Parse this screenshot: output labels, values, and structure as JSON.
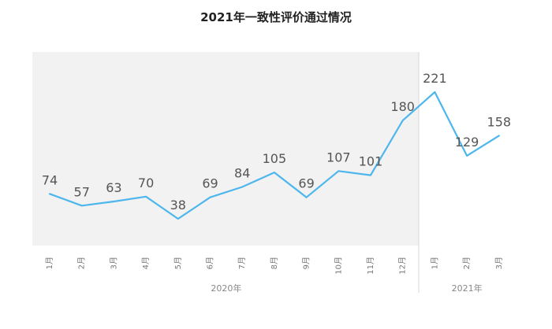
{
  "chart_data": {
    "type": "line",
    "title": "2021年一致性评价通过情况",
    "categories": [
      "1月",
      "2月",
      "3月",
      "4月",
      "5月",
      "6月",
      "7月",
      "8月",
      "9月",
      "10月",
      "11月",
      "12月",
      "1月",
      "2月",
      "3月"
    ],
    "values": [
      74,
      57,
      63,
      70,
      38,
      69,
      84,
      105,
      69,
      107,
      101,
      180,
      221,
      129,
      158
    ],
    "groups": [
      {
        "label": "2020年",
        "start": 0,
        "end": 11,
        "shaded": true
      },
      {
        "label": "2021年",
        "start": 12,
        "end": 14,
        "shaded": false
      }
    ],
    "ylim": [
      0,
      250
    ],
    "grid": false,
    "colors": {
      "line": "#4db6ec",
      "shade": "#f2f2f2",
      "text": "#555555"
    }
  }
}
